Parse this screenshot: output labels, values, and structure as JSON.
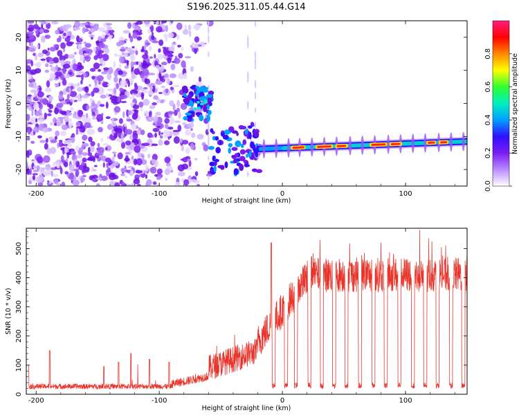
{
  "title": "S196.2025.311.05.44.G14",
  "colors": {
    "snr_line": "#e8342a",
    "scatter": "#7a1cf0",
    "background": "#ffffff"
  },
  "chart_data": [
    {
      "type": "heatmap",
      "name": "spectrogram",
      "xlabel": "Height of straight line (km)",
      "ylabel": "Frequency (Hz)",
      "xlim": [
        -208,
        150
      ],
      "ylim": [
        -25,
        25
      ],
      "xticks": [
        -200,
        -100,
        0,
        100
      ],
      "yticks": [
        -20,
        -10,
        0,
        10,
        20
      ],
      "colorbar": {
        "label": "Normalized spectral amplitude",
        "range": [
          0.0,
          1.0
        ],
        "ticks": [
          "0.0",
          "0.2",
          "0.4",
          "0.6",
          "0.8"
        ],
        "colormap": [
          "#ffffff",
          "#b98cff",
          "#7a1cf0",
          "#3010ff",
          "#00a0ff",
          "#00f0c0",
          "#30ff30",
          "#ffff00",
          "#ff8800",
          "#ff0000",
          "#ff2080"
        ]
      },
      "signal_track": {
        "description_points": [
          [
            -80,
            0
          ],
          [
            -60,
            0
          ],
          [
            -55,
            -15
          ],
          [
            -40,
            -13
          ],
          [
            -20,
            -14
          ],
          [
            0,
            -13.5
          ],
          [
            50,
            -13
          ],
          [
            100,
            -12.5
          ],
          [
            150,
            -11.5
          ]
        ]
      }
    },
    {
      "type": "line",
      "name": "snr",
      "xlabel": "Height of straight line (km)",
      "ylabel": "SNR (10 * v/v)",
      "xlim": [
        -208,
        150
      ],
      "ylim": [
        0,
        570
      ],
      "xticks": [
        -200,
        -100,
        0,
        100
      ],
      "yticks": [
        0,
        100,
        200,
        300,
        400,
        500
      ]
    }
  ]
}
